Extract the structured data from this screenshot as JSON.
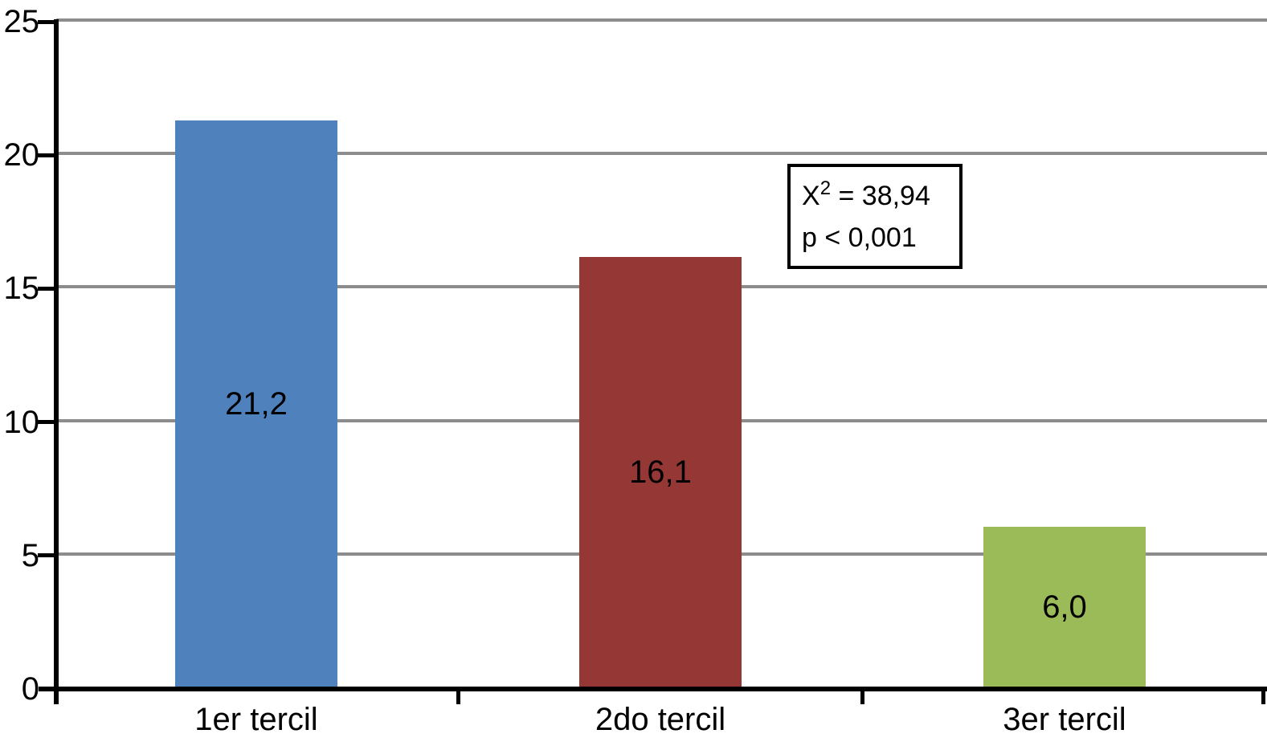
{
  "chart_data": {
    "type": "bar",
    "categories": [
      "1er tercil",
      "2do tercil",
      "3er tercil"
    ],
    "values": [
      21.2,
      16.1,
      6.0
    ],
    "value_labels": [
      "21,2",
      "16,1",
      "6,0"
    ],
    "bar_colors": [
      "#4f81bd",
      "#953735",
      "#9bbb59"
    ],
    "title": "",
    "xlabel": "",
    "ylabel": "",
    "ylim": [
      0,
      25
    ],
    "yticks": [
      0,
      5,
      10,
      15,
      20,
      25
    ],
    "ytick_labels": [
      "0",
      "5",
      "10",
      "15",
      "20",
      "25"
    ],
    "grid": true,
    "legend": "none",
    "decimal_separator": ",",
    "colors": {
      "axis": "#000000",
      "gridline": "#8c8c8c",
      "text": "#000000",
      "background": "#ffffff"
    },
    "annotation": {
      "chi_base": "X",
      "chi_superscript": "2",
      "chi_rest": " = 38,94",
      "p_line": "p < 0,001"
    }
  }
}
